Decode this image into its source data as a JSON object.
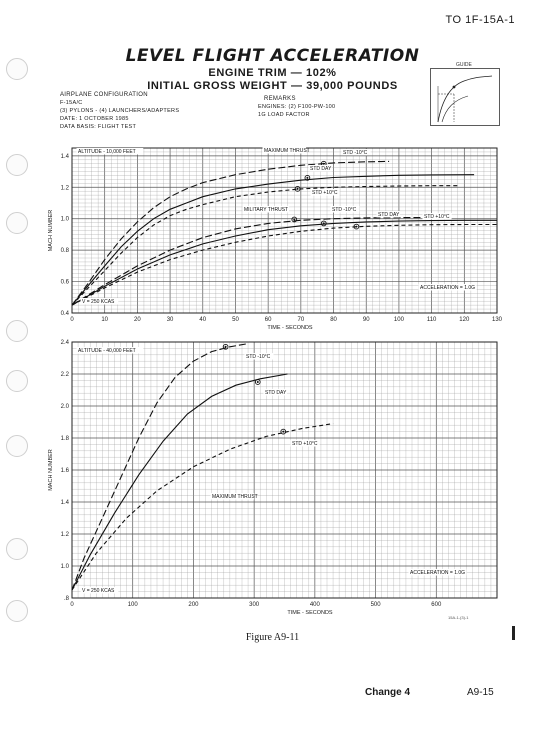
{
  "header": {
    "doc_id": "TO 1F-15A-1",
    "title": "LEVEL FLIGHT ACCELERATION",
    "subtitle1": "ENGINE TRIM — 102%",
    "subtitle2": "INITIAL GROSS WEIGHT — 39,000 POUNDS"
  },
  "configuration": {
    "heading": "AIRPLANE CONFIGURATION",
    "lines": [
      "F-15A/C",
      "(3) PYLONS - (4) LAUNCHERS/ADAPTERS",
      "DATE:  1 OCTOBER 1985",
      "DATA BASIS:  FLIGHT TEST"
    ]
  },
  "remarks": {
    "heading": "REMARKS",
    "lines": [
      "ENGINES:  (2) F100-PW-100",
      "1G LOAD FACTOR"
    ]
  },
  "guide": {
    "label": "GUIDE"
  },
  "footer": {
    "figure": "Figure A9-11",
    "change": "Change 4",
    "page": "A9-15",
    "ref": "15A-1-(3)-1"
  },
  "chart_data": [
    {
      "type": "line",
      "xlabel": "TIME - SECONDS",
      "ylabel": "MACH NUMBER",
      "xlim": [
        0,
        130
      ],
      "ylim": [
        0.4,
        1.45
      ],
      "xticks": [
        0,
        10,
        20,
        30,
        40,
        50,
        60,
        70,
        80,
        90,
        100,
        110,
        120,
        130
      ],
      "yticks": [
        0.4,
        0.6,
        0.8,
        1.0,
        1.2,
        1.4
      ],
      "annotations": [
        "ALTITUDE - 10,000 FEET",
        "V = 250 KCAS",
        "ACCELERATION = 1.0G",
        "MAXIMUM THRUST",
        "MILITARY THRUST"
      ],
      "series": [
        {
          "name": "STD -10°C",
          "group": "MAXIMUM THRUST",
          "dash": "7,3",
          "x": [
            0,
            5,
            10,
            15,
            20,
            25,
            30,
            35,
            40,
            50,
            60,
            70,
            80,
            90,
            97
          ],
          "y": [
            0.45,
            0.59,
            0.74,
            0.87,
            0.98,
            1.07,
            1.14,
            1.19,
            1.23,
            1.28,
            1.315,
            1.34,
            1.355,
            1.362,
            1.365
          ],
          "marker": [
            77,
            1.35
          ]
        },
        {
          "name": "STD DAY",
          "group": "MAXIMUM THRUST",
          "dash": "",
          "x": [
            0,
            5,
            10,
            15,
            20,
            25,
            30,
            35,
            40,
            50,
            60,
            70,
            80,
            90,
            100,
            110,
            123
          ],
          "y": [
            0.45,
            0.575,
            0.7,
            0.82,
            0.92,
            1.0,
            1.06,
            1.1,
            1.14,
            1.19,
            1.22,
            1.245,
            1.262,
            1.27,
            1.276,
            1.279,
            1.28
          ],
          "marker": [
            72,
            1.26
          ]
        },
        {
          "name": "STD +10°C",
          "group": "MAXIMUM THRUST",
          "dash": "4,3",
          "x": [
            0,
            5,
            10,
            15,
            20,
            25,
            30,
            35,
            40,
            50,
            60,
            70,
            80,
            90,
            100,
            110,
            118
          ],
          "y": [
            0.45,
            0.56,
            0.67,
            0.78,
            0.88,
            0.96,
            1.02,
            1.06,
            1.09,
            1.14,
            1.17,
            1.19,
            1.2,
            1.205,
            1.208,
            1.21,
            1.21
          ],
          "marker": [
            69,
            1.19
          ]
        },
        {
          "name": "STD -10°C",
          "group": "MILITARY THRUST",
          "dash": "7,3",
          "x": [
            0,
            10,
            20,
            30,
            40,
            50,
            60,
            70,
            80,
            90,
            100,
            110,
            115
          ],
          "y": [
            0.45,
            0.58,
            0.7,
            0.8,
            0.88,
            0.935,
            0.97,
            0.99,
            1.0,
            1.005,
            1.007,
            1.008,
            1.008
          ],
          "marker": [
            68,
            0.995
          ]
        },
        {
          "name": "STD DAY",
          "group": "MILITARY THRUST",
          "dash": "",
          "x": [
            0,
            10,
            20,
            30,
            40,
            50,
            60,
            70,
            80,
            90,
            100,
            110,
            120,
            130
          ],
          "y": [
            0.45,
            0.57,
            0.68,
            0.77,
            0.84,
            0.89,
            0.93,
            0.955,
            0.97,
            0.98,
            0.985,
            0.988,
            0.99,
            0.99
          ],
          "marker": [
            77,
            0.97
          ]
        },
        {
          "name": "STD +10°C",
          "group": "MILITARY THRUST",
          "dash": "4,3",
          "x": [
            0,
            10,
            20,
            30,
            40,
            50,
            60,
            70,
            80,
            90,
            100,
            110,
            120,
            130
          ],
          "y": [
            0.45,
            0.56,
            0.66,
            0.74,
            0.8,
            0.85,
            0.89,
            0.92,
            0.94,
            0.952,
            0.958,
            0.962,
            0.963,
            0.963
          ],
          "marker": [
            87,
            0.95
          ]
        }
      ]
    },
    {
      "type": "line",
      "xlabel": "TIME - SECONDS",
      "ylabel": "MACH NUMBER",
      "xlim": [
        0,
        700
      ],
      "ylim": [
        0.8,
        2.4
      ],
      "xticks": [
        0,
        100,
        200,
        300,
        400,
        500,
        600
      ],
      "yticks": [
        0.8,
        1.0,
        1.2,
        1.4,
        1.6,
        1.8,
        2.0,
        2.2,
        2.4
      ],
      "annotations": [
        "ALTITUDE - 40,000 FEET",
        "V = 250 KCAS",
        "ACCELERATION = 1.0G",
        "MAXIMUM THRUST"
      ],
      "series": [
        {
          "name": "STD -10°C",
          "dash": "7,3",
          "x": [
            0,
            20,
            50,
            80,
            110,
            140,
            170,
            200,
            230,
            260,
            290
          ],
          "y": [
            0.85,
            1.05,
            1.3,
            1.55,
            1.8,
            2.02,
            2.18,
            2.28,
            2.34,
            2.37,
            2.39
          ],
          "marker": [
            253,
            2.37
          ]
        },
        {
          "name": "STD DAY",
          "dash": "",
          "x": [
            0,
            30,
            70,
            110,
            150,
            190,
            230,
            270,
            310,
            355
          ],
          "y": [
            0.85,
            1.07,
            1.33,
            1.57,
            1.78,
            1.95,
            2.06,
            2.13,
            2.17,
            2.2
          ],
          "marker": [
            306,
            2.15
          ]
        },
        {
          "name": "STD +10°C",
          "dash": "4,3",
          "x": [
            0,
            40,
            90,
            140,
            200,
            260,
            320,
            380,
            430
          ],
          "y": [
            0.85,
            1.08,
            1.3,
            1.47,
            1.62,
            1.73,
            1.81,
            1.86,
            1.89
          ],
          "marker": [
            348,
            1.84
          ]
        }
      ]
    }
  ]
}
